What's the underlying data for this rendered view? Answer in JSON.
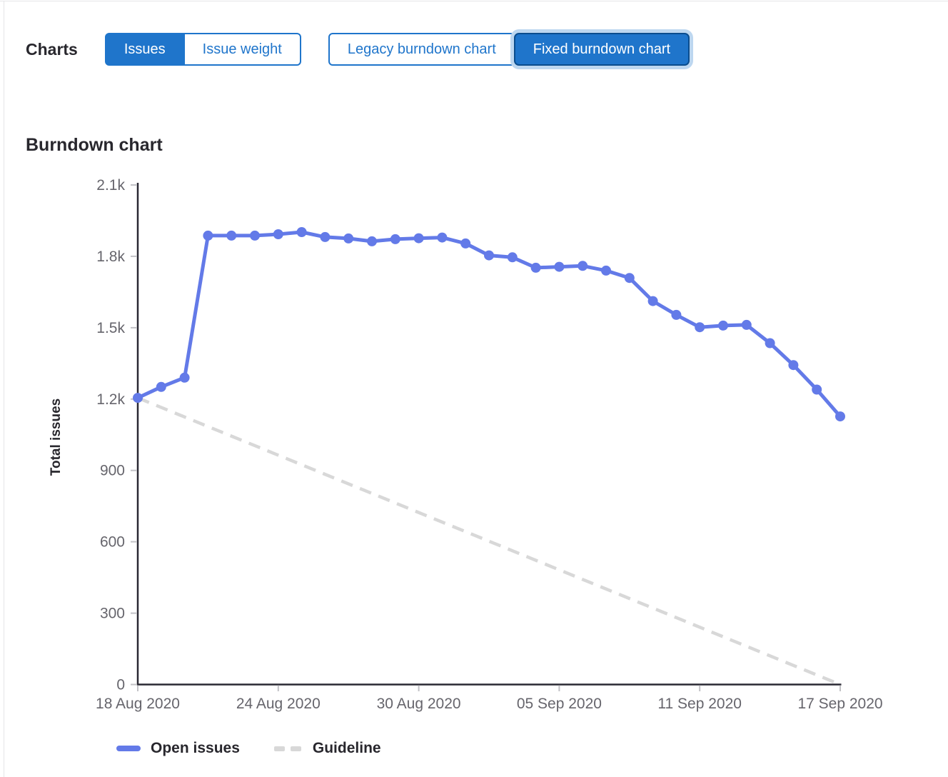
{
  "toolbar": {
    "label": "Charts",
    "issue_toggle": [
      {
        "label": "Issues",
        "active": true
      },
      {
        "label": "Issue weight",
        "active": false
      }
    ],
    "chart_toggle": [
      {
        "label": "Legacy burndown chart",
        "active": false
      },
      {
        "label": "Fixed burndown chart",
        "active": true,
        "focused": true
      }
    ]
  },
  "heading": "Burndown chart",
  "colors": {
    "accent_blue": "#1f75cb",
    "accent_blue_dark_border": "#0b4d8e",
    "focus_halo": "#bdd7f0",
    "series_blue": "#637ae8",
    "guideline_gray": "#d8d8d8",
    "axis": "#2a2933",
    "tick": "#c2c2c6",
    "tick_label": "#66656c",
    "text_dark": "#28272d"
  },
  "chart_data": {
    "type": "line",
    "title": "Burndown chart",
    "xlabel": "",
    "ylabel": "Total issues",
    "ylim": [
      0,
      2100
    ],
    "grid": false,
    "legend_position": "bottom-left",
    "y_ticks": [
      {
        "value": 0,
        "label": "0"
      },
      {
        "value": 300,
        "label": "300"
      },
      {
        "value": 600,
        "label": "600"
      },
      {
        "value": 900,
        "label": "900"
      },
      {
        "value": 1200,
        "label": "1.2k"
      },
      {
        "value": 1500,
        "label": "1.5k"
      },
      {
        "value": 1800,
        "label": "1.8k"
      },
      {
        "value": 2100,
        "label": "2.1k"
      }
    ],
    "x_ticks": [
      {
        "day": 0,
        "label": "18 Aug 2020"
      },
      {
        "day": 6,
        "label": "24 Aug 2020"
      },
      {
        "day": 12,
        "label": "30 Aug 2020"
      },
      {
        "day": 18,
        "label": "05 Sep 2020"
      },
      {
        "day": 24,
        "label": "11 Sep 2020"
      },
      {
        "day": 30,
        "label": "17 Sep 2020"
      }
    ],
    "categories": [
      "18 Aug",
      "19 Aug",
      "20 Aug",
      "21 Aug",
      "22 Aug",
      "23 Aug",
      "24 Aug",
      "25 Aug",
      "26 Aug",
      "27 Aug",
      "28 Aug",
      "29 Aug",
      "30 Aug",
      "31 Aug",
      "01 Sep",
      "02 Sep",
      "03 Sep",
      "04 Sep",
      "05 Sep",
      "06 Sep",
      "07 Sep",
      "08 Sep",
      "09 Sep",
      "10 Sep",
      "11 Sep",
      "12 Sep",
      "13 Sep",
      "14 Sep",
      "15 Sep",
      "16 Sep",
      "17 Sep"
    ],
    "series": [
      {
        "name": "Open issues",
        "style": "solid",
        "color": "#637ae8",
        "values": [
          1205,
          1251,
          1290,
          1887,
          1887,
          1887,
          1893,
          1902,
          1881,
          1875,
          1863,
          1872,
          1876,
          1879,
          1854,
          1804,
          1796,
          1752,
          1756,
          1760,
          1740,
          1709,
          1612,
          1554,
          1502,
          1509,
          1512,
          1435,
          1343,
          1240,
          1127
        ]
      },
      {
        "name": "Guideline",
        "style": "dashed",
        "color": "#d8d8d8",
        "days": [
          0,
          30
        ],
        "values": [
          1205,
          0
        ]
      }
    ]
  }
}
